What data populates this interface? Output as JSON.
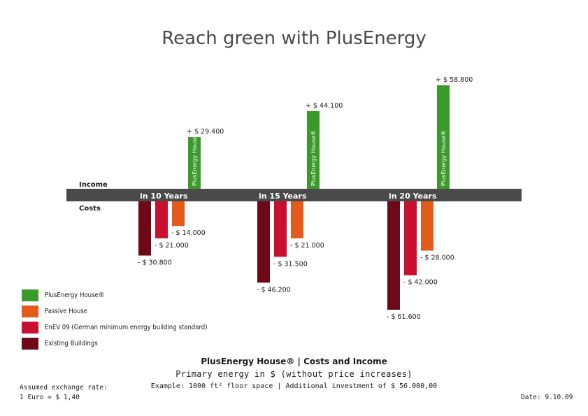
{
  "title": "Reach green with PlusEnergy",
  "chart_data": {
    "type": "bar",
    "categories": [
      "in 10 Years",
      "in 15 Years",
      "in 20 Years"
    ],
    "income_label": "Income",
    "costs_label": "Costs",
    "series": [
      {
        "name": "Existing Buildings",
        "color": "#6e0a18",
        "values": [
          -30800,
          -46200,
          -61600
        ],
        "labels": [
          "- $ 30.800",
          "- $ 46.200",
          "- $ 61.600"
        ]
      },
      {
        "name": "EnEV 09 (German minimum energy building standard)",
        "color": "#c8102e",
        "values": [
          -21000,
          -31500,
          -42000
        ],
        "labels": [
          "- $ 21.000",
          "- $ 31.500",
          "- $ 42.000"
        ]
      },
      {
        "name": "Passive House",
        "color": "#e35a1a",
        "values": [
          -14000,
          -21000,
          -28000
        ],
        "labels": [
          "- $ 14.000",
          "- $ 21.000",
          "- $ 28.000"
        ]
      },
      {
        "name": "PlusEnergy House®",
        "color": "#3a9a2a",
        "values": [
          29400,
          44100,
          58800
        ],
        "labels": [
          "+ $ 29.400",
          "+ $ 44.100",
          "+ $ 58.800"
        ],
        "bar_text": "PlusEnergy House®"
      }
    ]
  },
  "legend": [
    {
      "label": "PlusEnergy House®",
      "color": "#3a9a2a"
    },
    {
      "label": "Passive House",
      "color": "#e35a1a"
    },
    {
      "label": "EnEV 09 (German minimum energy building standard)",
      "color": "#c8102e"
    },
    {
      "label": "Existing Buildings",
      "color": "#6e0a18"
    }
  ],
  "footer": {
    "line1": "PlusEnergy House® | Costs and Income",
    "line2": "Primary energy in $  (without price increases)",
    "line3": "Example: 1000 ft² floor space  |  Additional investment of $ 56.000,00",
    "exchange_line1": "Assumed exchange rate:",
    "exchange_line2": "1 Euro = $ 1,40",
    "date": "Date: 9.10.09"
  }
}
